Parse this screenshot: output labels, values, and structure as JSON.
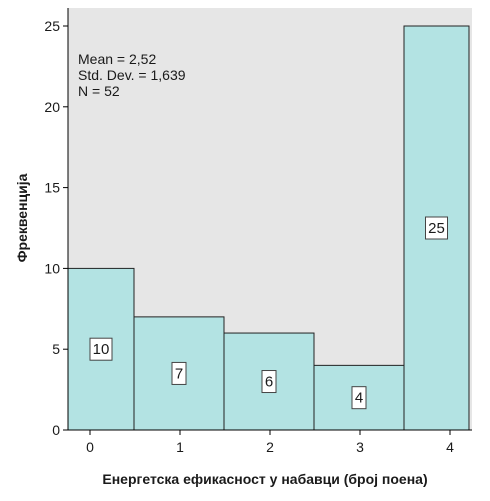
{
  "chart_data": {
    "type": "bar",
    "title": "",
    "xlabel": "Енергетска ефикасност у набавци (број поена)",
    "ylabel": "Фреквенција",
    "categories": [
      "0",
      "1",
      "2",
      "3",
      "4"
    ],
    "values": [
      10,
      7,
      6,
      4,
      25
    ],
    "ylim": [
      0,
      26
    ],
    "yticks": [
      0,
      5,
      10,
      15,
      20,
      25
    ],
    "xticks": [
      "0",
      "1",
      "2",
      "3",
      "4"
    ],
    "grid": false,
    "data_labels": true,
    "stats": {
      "mean": "Mean = 2,52",
      "std_dev": "Std. Dev. = 1,639",
      "n": "N = 52"
    },
    "colors": {
      "plot_background": "#e6e6e6",
      "bar_fill": "#b3e3e3",
      "bar_stroke": "#222222",
      "axis": "#000000"
    }
  }
}
